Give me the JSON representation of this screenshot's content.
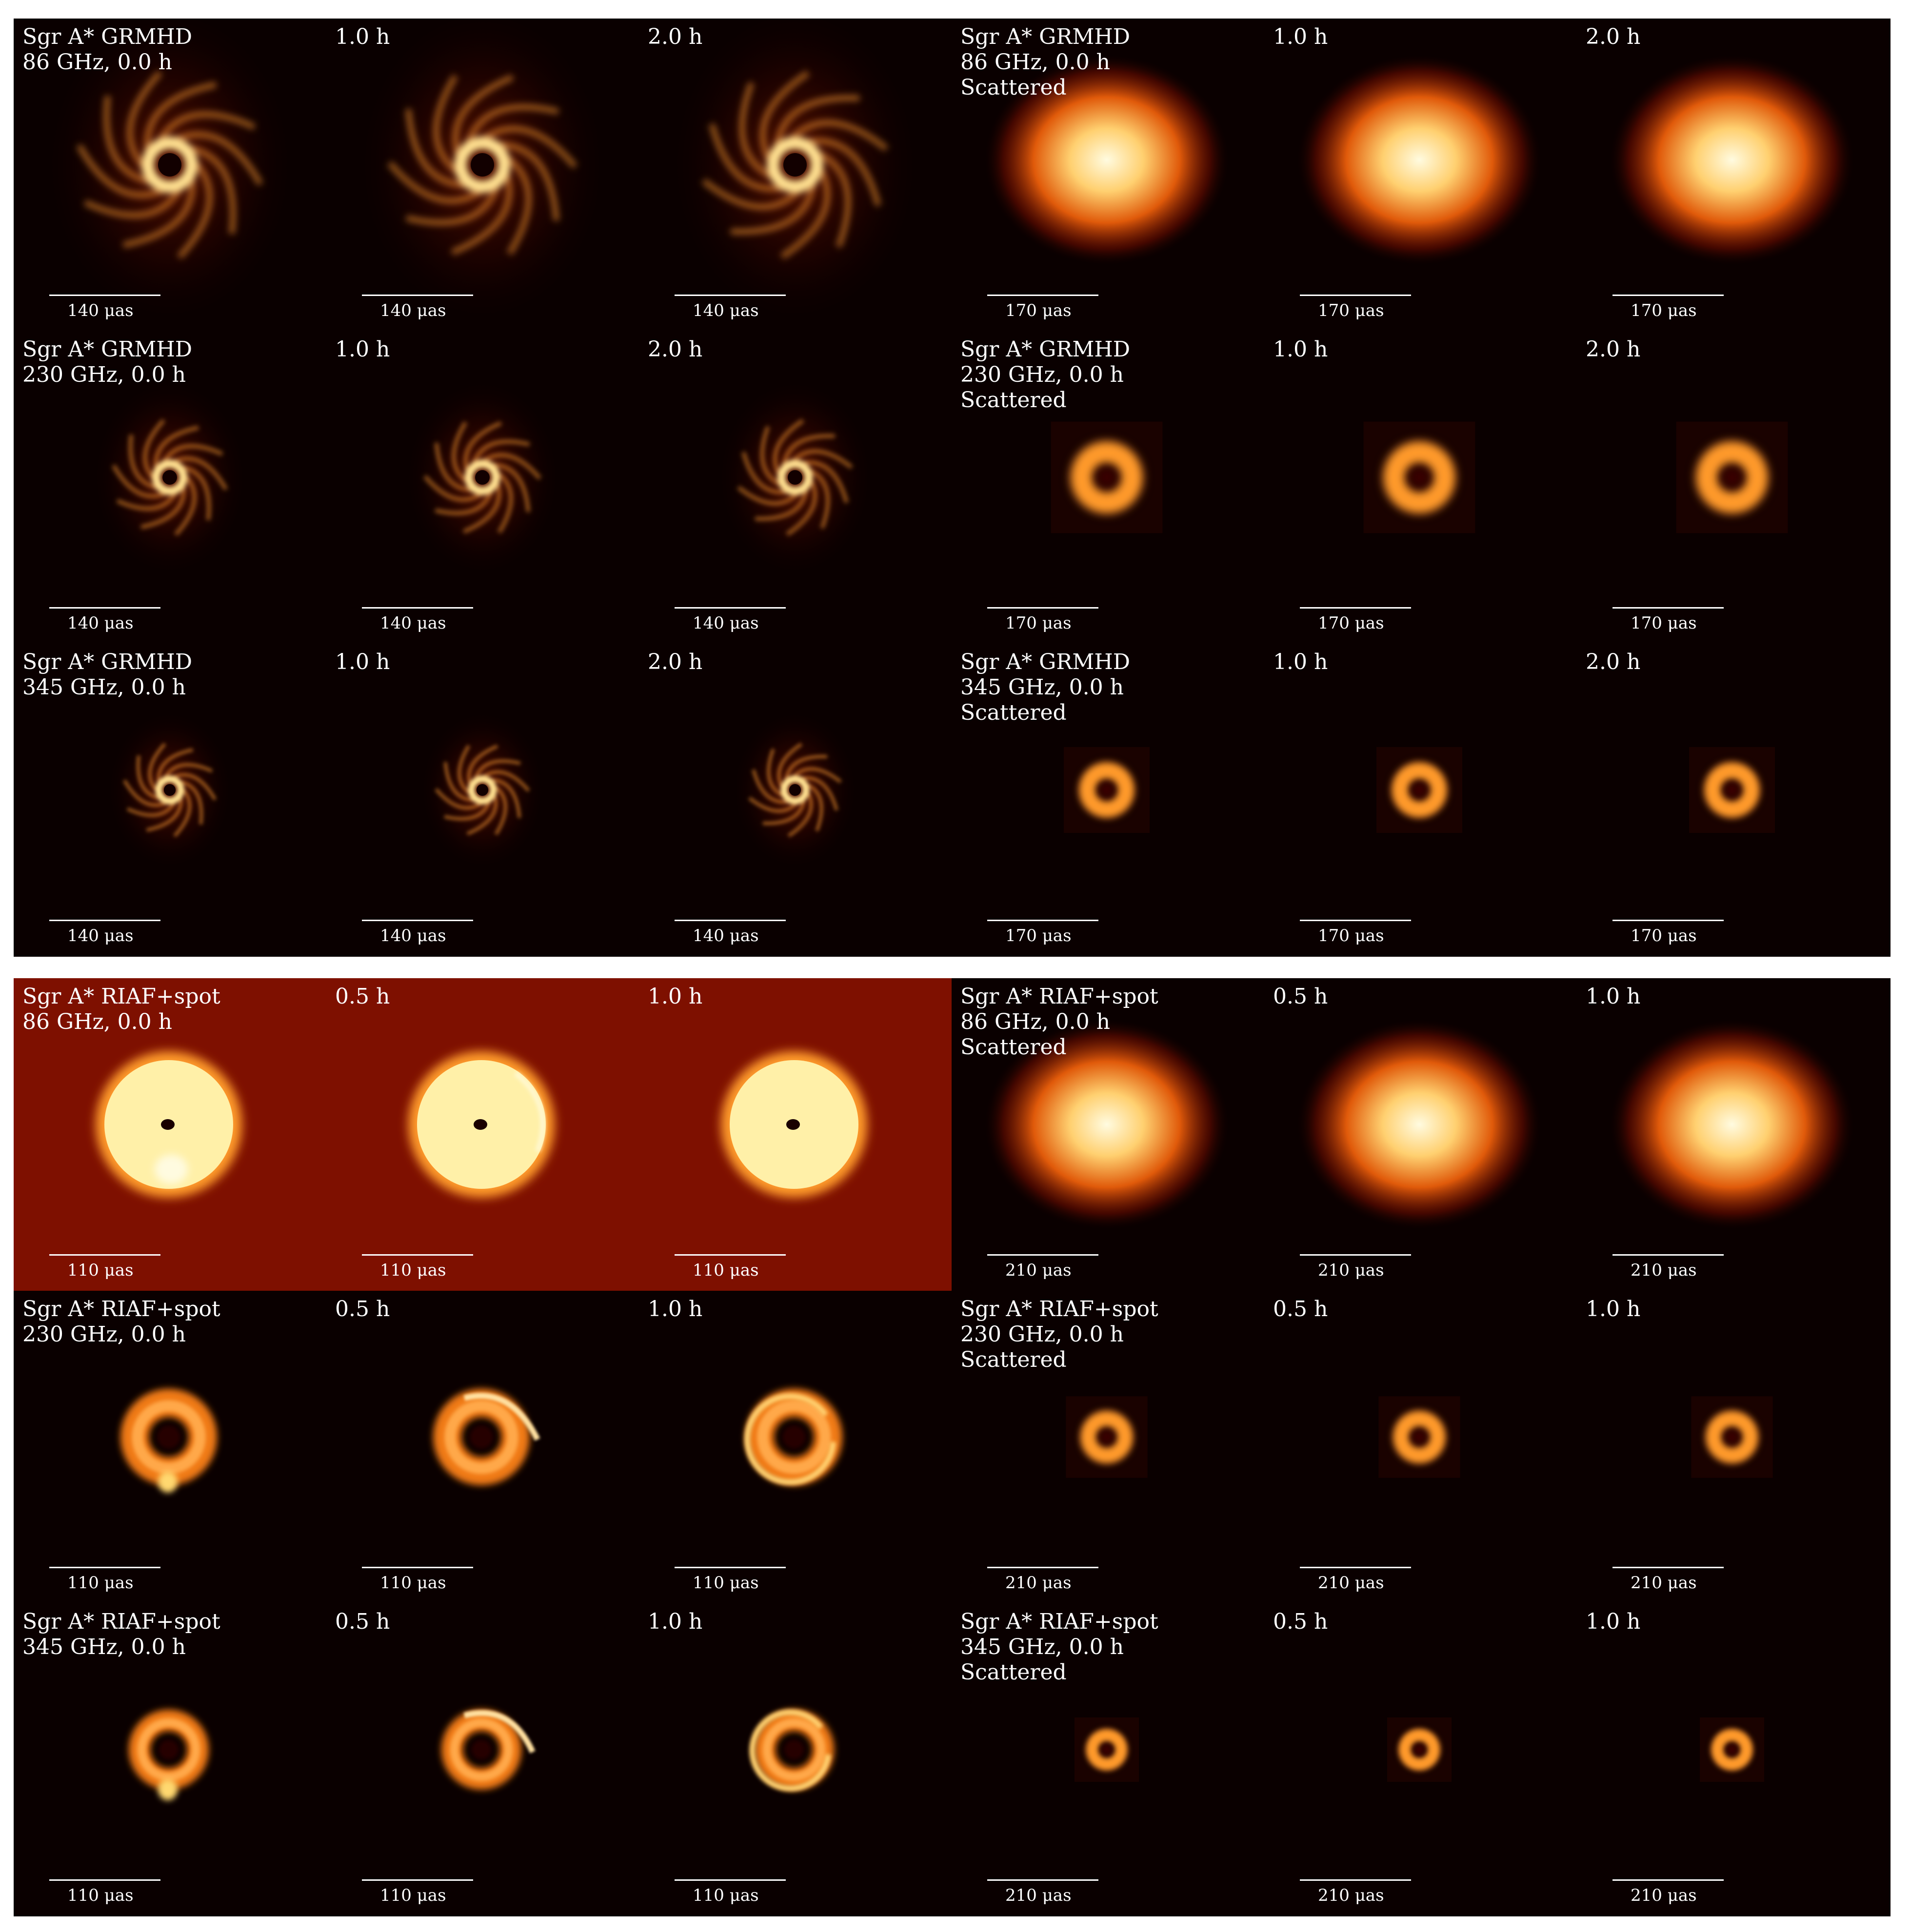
{
  "blocks": [
    {
      "id": "grmhd",
      "rows": [
        {
          "freq": "86",
          "label_left": "Sgr A* GRMHD\n86 GHz, 0.0 h",
          "label_right": "Sgr A* GRMHD\n86 GHz, 0.0 h\nScattered",
          "times": [
            "1.0 h",
            "2.0 h"
          ],
          "scale_left": "140 μas",
          "scale_right": "170 μas"
        },
        {
          "freq": "230",
          "label_left": "Sgr A* GRMHD\n230 GHz, 0.0 h",
          "label_right": "Sgr A* GRMHD\n230 GHz, 0.0 h\nScattered",
          "times": [
            "1.0 h",
            "2.0 h"
          ],
          "scale_left": "140 μas",
          "scale_right": "170 μas"
        },
        {
          "freq": "345",
          "label_left": "Sgr A* GRMHD\n345 GHz, 0.0 h",
          "label_right": "Sgr A* GRMHD\n345 GHz, 0.0 h\nScattered",
          "times": [
            "1.0 h",
            "2.0 h"
          ],
          "scale_left": "140 μas",
          "scale_right": "170 μas"
        }
      ]
    },
    {
      "id": "riaf",
      "rows": [
        {
          "freq": "86",
          "label_left": "Sgr A* RIAF+spot\n86 GHz, 0.0 h",
          "label_right": "Sgr A* RIAF+spot\n86 GHz, 0.0 h\nScattered",
          "times": [
            "0.5 h",
            "1.0 h"
          ],
          "scale_left": "110 μas",
          "scale_right": "210 μas"
        },
        {
          "freq": "230",
          "label_left": "Sgr A* RIAF+spot\n230 GHz, 0.0 h",
          "label_right": "Sgr A* RIAF+spot\n230 GHz, 0.0 h\nScattered",
          "times": [
            "0.5 h",
            "1.0 h"
          ],
          "scale_left": "110 μas",
          "scale_right": "210 μas"
        },
        {
          "freq": "345",
          "label_left": "Sgr A* RIAF+spot\n345 GHz, 0.0 h",
          "label_right": "Sgr A* RIAF+spot\n345 GHz, 0.0 h\nScattered",
          "times": [
            "0.5 h",
            "1.0 h"
          ],
          "scale_left": "110 μas",
          "scale_right": "210 μas"
        }
      ]
    }
  ],
  "colors": {
    "background": "#0a0000",
    "hot": "#fff6c8",
    "mid": "#ff8a1a",
    "dark": "#7a0f00"
  }
}
